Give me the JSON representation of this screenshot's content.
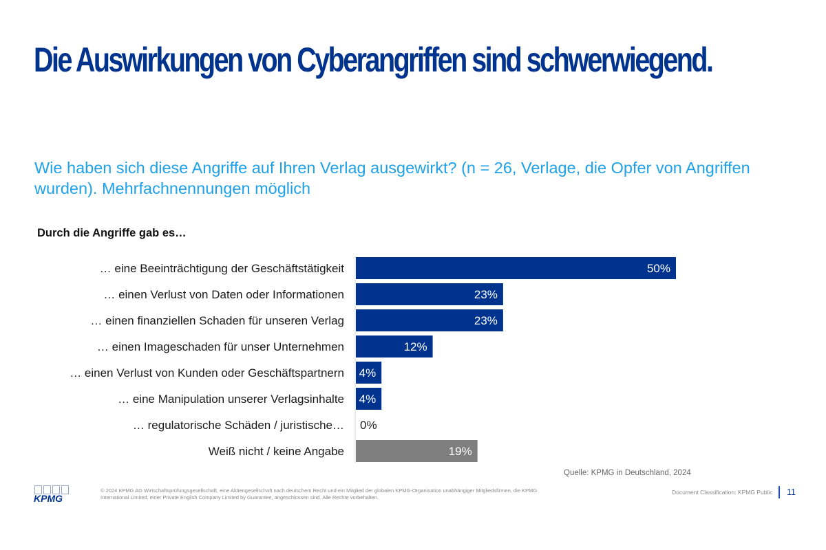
{
  "slide": {
    "title": "Die Auswirkungen von Cyberangriffen sind schwerwiegend.",
    "subtitle": "Wie haben sich diese Angriffe auf Ihren Verlag ausgewirkt? (n = 26, Verlage, die Opfer von Angriffen wurden). Mehrfachnennungen möglich",
    "section_label": "Durch die Angriffe gab es…",
    "source": "Quelle: KPMG in Deutschland, 2024"
  },
  "footer": {
    "logo_text": "KPMG",
    "copyright": "© 2024 KPMG AG Wirtschaftsprüfungsgesellschaft, eine Aktiengesellschaft nach deutschem Recht und ein Mitglied der globalen KPMG-Organisation unabhängiger Mitgliedsfirmen, die KPMG International Limited, einer Private English Company Limited by Guarantee, angeschlossen sind. Alle Rechte vorbehalten.",
    "classification": "Document Classification: KPMG Public",
    "page_number": "11"
  },
  "colors": {
    "brand_blue": "#00338D",
    "subtitle_blue": "#1EA1E8",
    "bar_primary": "#00338D",
    "bar_neutral": "#7F7F7F"
  },
  "chart_data": {
    "type": "bar",
    "orientation": "horizontal",
    "title": "Durch die Angriffe gab es…",
    "xlabel": "",
    "ylabel": "",
    "unit": "%",
    "xlim": [
      0,
      50
    ],
    "grid": false,
    "legend": "none",
    "categories": [
      "… eine Beeinträchtigung der Geschäftstätigkeit",
      "… einen Verlust von Daten oder Informationen",
      "… einen finanziellen Schaden für unseren Verlag",
      "… einen Imageschaden für unser Unternehmen",
      "… einen Verlust von Kunden oder Geschäftspartnern",
      "… eine Manipulation unserer Verlagsinhalte",
      "… regulatorische Schäden / juristische…",
      "Weiß nicht / keine Angabe"
    ],
    "values": [
      50,
      23,
      23,
      12,
      4,
      4,
      0,
      19
    ],
    "value_labels": [
      "50%",
      "23%",
      "23%",
      "12%",
      "4%",
      "4%",
      "0%",
      "19%"
    ],
    "bar_colors": [
      "#00338D",
      "#00338D",
      "#00338D",
      "#00338D",
      "#00338D",
      "#00338D",
      "#00338D",
      "#7F7F7F"
    ]
  }
}
